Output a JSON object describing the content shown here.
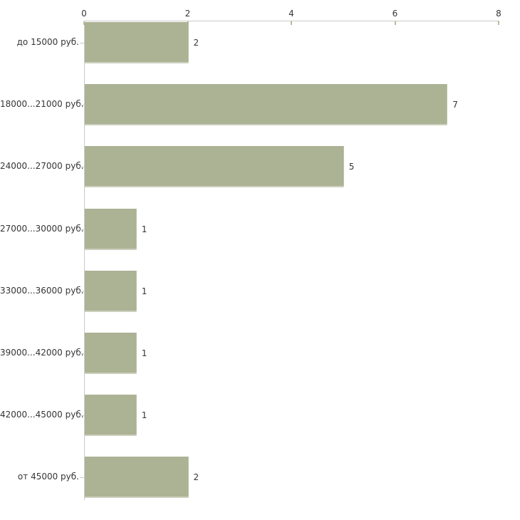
{
  "chart_data": {
    "type": "bar",
    "orientation": "horizontal",
    "title": "",
    "xlabel": "",
    "ylabel": "",
    "categories": [
      "до 15000 руб.",
      "18000...21000 руб.",
      "24000...27000 руб.",
      "27000...30000 руб.",
      "33000...36000 руб.",
      "39000...42000 руб.",
      "42000...45000 руб.",
      "от 45000 руб."
    ],
    "values": [
      2,
      7,
      5,
      1,
      1,
      1,
      1,
      2
    ],
    "value_labels": [
      "2",
      "7",
      "5",
      "1",
      "1",
      "1",
      "1",
      "2"
    ],
    "xlim": [
      0,
      8
    ],
    "x_ticks": [
      "0",
      "2",
      "4",
      "6",
      "8"
    ],
    "x_tick_values": [
      0,
      2,
      4,
      6,
      8
    ],
    "axis_position": "top",
    "grid": false,
    "legend": false,
    "colors": {
      "bar_fill": "#acb294",
      "bar_edge_highlight": "#d9dcc8",
      "axis_line": "#c9c9c9",
      "x_tick_mark": "#bfb98a",
      "category_tick_mark": "#c9c9c9",
      "text": "#353535",
      "background": "#ffffff"
    }
  }
}
